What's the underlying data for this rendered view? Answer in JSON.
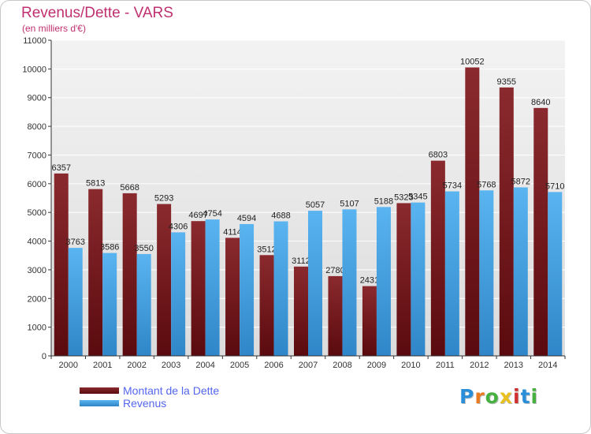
{
  "chart_data": {
    "type": "bar",
    "title": "Revenus/Dette - VARS",
    "subtitle": "(en milliers d'€)",
    "categories": [
      "2000",
      "2001",
      "2002",
      "2003",
      "2004",
      "2005",
      "2006",
      "2007",
      "2008",
      "2009",
      "2010",
      "2011",
      "2012",
      "2013",
      "2014"
    ],
    "series": [
      {
        "name": "Montant de la Dette",
        "color": "#7a1e22",
        "values": [
          6357,
          5813,
          5668,
          5293,
          4697,
          4114,
          3512,
          3112,
          2780,
          2431,
          5323,
          6803,
          10052,
          9355,
          8640
        ]
      },
      {
        "name": "Revenus",
        "color": "#4aa6e8",
        "values": [
          3763,
          3586,
          3550,
          4306,
          4754,
          4594,
          4688,
          5057,
          5107,
          5188,
          5345,
          5734,
          5768,
          5872,
          5710
        ]
      }
    ],
    "y_ticks": [
      "0",
      "1000",
      "2000",
      "3000",
      "4000",
      "5000",
      "6000",
      "7000",
      "8000",
      "9000",
      "10000",
      "11000"
    ],
    "ylim": [
      0,
      11000
    ],
    "grid": true,
    "legend_position": "bottom-left"
  },
  "logo": {
    "letters": [
      "P",
      "r",
      "o",
      "x",
      "i",
      "t",
      "i"
    ],
    "colors": [
      "#2a8fd8",
      "#e87a20",
      "#46b040",
      "#e8c020",
      "#d03030",
      "#2a8fd8",
      "#46b040"
    ]
  }
}
